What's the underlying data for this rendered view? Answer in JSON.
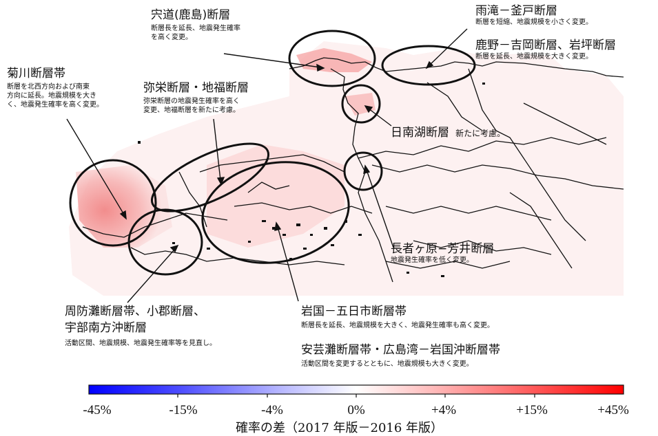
{
  "labels": {
    "shinji": {
      "title": "宍道(鹿島)断層",
      "lines": [
        "断層長を延長、地震発生確率",
        "を高く変更。"
      ]
    },
    "amedaki": {
      "title": "雨滝－釜戸断層",
      "lines": [
        "断層を短縮、地震規模を小さく変更。"
      ]
    },
    "shikano": {
      "title": "鹿野－吉岡断層、岩坪断層",
      "lines": [
        "断層を延長、地震規模を大きく変更。"
      ]
    },
    "kikugawa": {
      "title": "菊川断層帯",
      "lines": [
        "断層を北西方向および南東",
        "方向に延長。地震規模を大き",
        "く、地震発生確率を高く変更。"
      ]
    },
    "yasaka": {
      "title": "弥栄断層・地福断層",
      "lines": [
        "弥栄断層の地震発生確率を高く",
        "変更、地福断層を新たに考慮。"
      ]
    },
    "hinan": {
      "title": "日南湖断層",
      "note": "新たに考慮。"
    },
    "nagaja": {
      "title": "長者ヶ原−芳井断層",
      "lines": [
        "地震発生確率を低く変更。"
      ]
    },
    "suonada": {
      "title_lines": [
        "周防灘断層帯、小郡断層、",
        "宇部南方沖断層"
      ],
      "lines": [
        "活動区間、地震規模、地震発生確率等を見直し。"
      ]
    },
    "iwakuni": {
      "title": "岩国－五日市断層帯",
      "lines": [
        "断層長を延長、地震規模を大きく、地震発生確率も高く変更。"
      ]
    },
    "aki": {
      "title": "安芸灘断層帯・広島湾－岩国沖断層帯",
      "lines": [
        "活動区間を変更するとともに、地震規模も大きく変更。"
      ]
    }
  },
  "legend": {
    "ticks": [
      "-45%",
      "-15%",
      "-4%",
      "0%",
      "+4%",
      "+15%",
      "+45%"
    ],
    "title": "確率の差（2017 年版－2016 年版）",
    "colors": {
      "min": "#0000ff",
      "mid": "#ffffff",
      "max": "#ff0000"
    }
  }
}
